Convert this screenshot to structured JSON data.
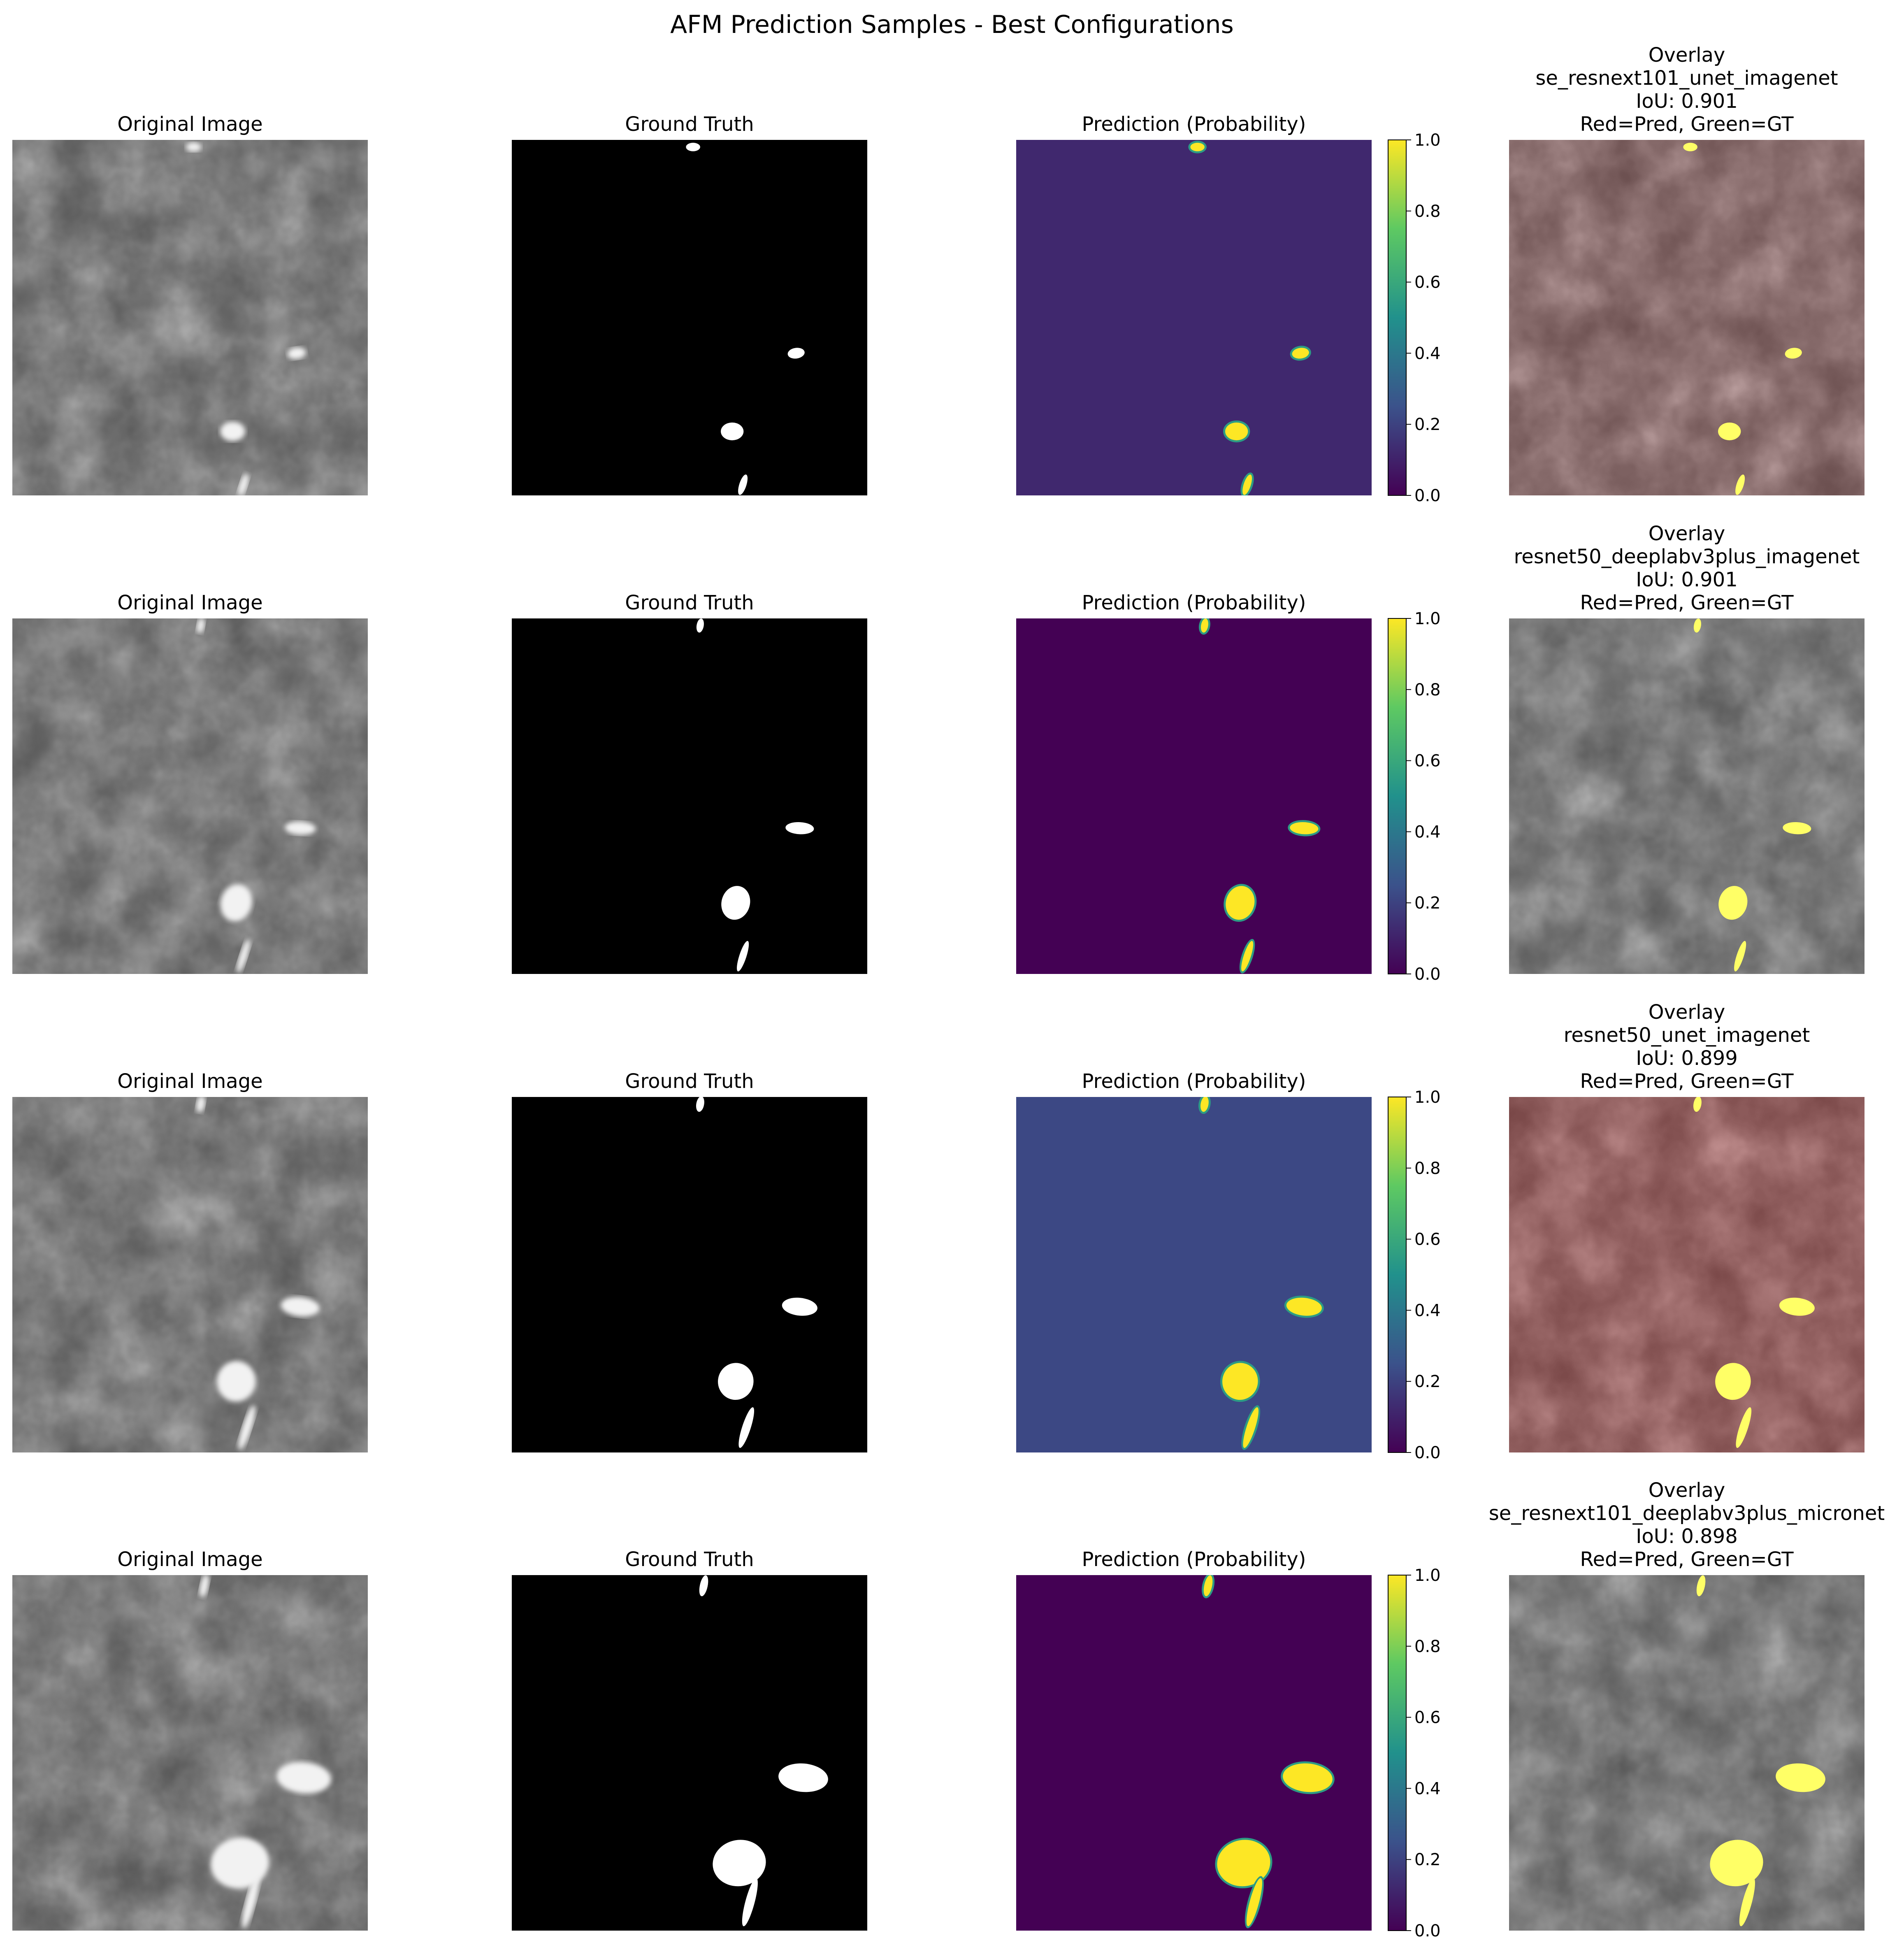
{
  "figure": {
    "title": "AFM Prediction Samples - Best Configurations"
  },
  "colors": {
    "background": "#ffffff",
    "text": "#000000",
    "mask_bg": "#000000",
    "mask_fg": "#ffffff",
    "viridis": [
      "#440154",
      "#3b528b",
      "#21918c",
      "#5ec962",
      "#fde725"
    ]
  },
  "chart_data": {
    "type": "image-grid",
    "column_titles": {
      "original": "Original Image",
      "ground_truth": "Ground Truth",
      "prediction": "Prediction (Probability)"
    },
    "colorbar": {
      "ticks": [
        0.0,
        0.2,
        0.4,
        0.6,
        0.8,
        1.0
      ],
      "tick_labels": [
        "0.0",
        "0.2",
        "0.4",
        "0.6",
        "0.8",
        "1.0"
      ],
      "range": [
        0.0,
        1.0
      ],
      "colormap": "viridis"
    },
    "rows": [
      {
        "overlay_lines": [
          "Overlay",
          "se_resnext101_unet_imagenet",
          "IoU: 0.901",
          "Red=Pred, Green=GT"
        ],
        "model": "se_resnext101_unet_imagenet",
        "iou": 0.901,
        "prediction_background": 0.12,
        "blobs": [
          {
            "x": 0.51,
            "y": 0.02,
            "rx": 0.02,
            "ry": 0.012,
            "rot": 0
          },
          {
            "x": 0.8,
            "y": 0.6,
            "rx": 0.024,
            "ry": 0.015,
            "rot": -8
          },
          {
            "x": 0.62,
            "y": 0.82,
            "rx": 0.032,
            "ry": 0.025,
            "rot": 0
          },
          {
            "x": 0.65,
            "y": 0.97,
            "rx": 0.01,
            "ry": 0.03,
            "rot": 18
          }
        ]
      },
      {
        "overlay_lines": [
          "Overlay",
          "resnet50_deeplabv3plus_imagenet",
          "IoU: 0.901",
          "Red=Pred, Green=GT"
        ],
        "model": "resnet50_deeplabv3plus_imagenet",
        "iou": 0.901,
        "prediction_background": 0.0,
        "blobs": [
          {
            "x": 0.53,
            "y": 0.02,
            "rx": 0.01,
            "ry": 0.02,
            "rot": 10
          },
          {
            "x": 0.81,
            "y": 0.59,
            "rx": 0.04,
            "ry": 0.017,
            "rot": 3
          },
          {
            "x": 0.63,
            "y": 0.8,
            "rx": 0.04,
            "ry": 0.048,
            "rot": 15
          },
          {
            "x": 0.65,
            "y": 0.95,
            "rx": 0.01,
            "ry": 0.045,
            "rot": 18
          }
        ]
      },
      {
        "overlay_lines": [
          "Overlay",
          "resnet50_unet_imagenet",
          "IoU: 0.899",
          "Red=Pred, Green=GT"
        ],
        "model": "resnet50_unet_imagenet",
        "iou": 0.899,
        "prediction_background": 0.22,
        "blobs": [
          {
            "x": 0.53,
            "y": 0.02,
            "rx": 0.011,
            "ry": 0.022,
            "rot": 10
          },
          {
            "x": 0.81,
            "y": 0.59,
            "rx": 0.05,
            "ry": 0.025,
            "rot": 6
          },
          {
            "x": 0.63,
            "y": 0.8,
            "rx": 0.05,
            "ry": 0.052,
            "rot": 10
          },
          {
            "x": 0.66,
            "y": 0.93,
            "rx": 0.012,
            "ry": 0.06,
            "rot": 18
          }
        ]
      },
      {
        "overlay_lines": [
          "Overlay",
          "se_resnext101_deeplabv3plus_micronet",
          "IoU: 0.898",
          "Red=Pred, Green=GT"
        ],
        "model": "se_resnext101_deeplabv3plus_micronet",
        "iou": 0.898,
        "prediction_background": 0.0,
        "blobs": [
          {
            "x": 0.54,
            "y": 0.03,
            "rx": 0.011,
            "ry": 0.03,
            "rot": 12
          },
          {
            "x": 0.82,
            "y": 0.57,
            "rx": 0.07,
            "ry": 0.04,
            "rot": 5
          },
          {
            "x": 0.64,
            "y": 0.81,
            "rx": 0.075,
            "ry": 0.065,
            "rot": -10
          },
          {
            "x": 0.67,
            "y": 0.92,
            "rx": 0.013,
            "ry": 0.07,
            "rot": 15
          }
        ]
      }
    ]
  }
}
